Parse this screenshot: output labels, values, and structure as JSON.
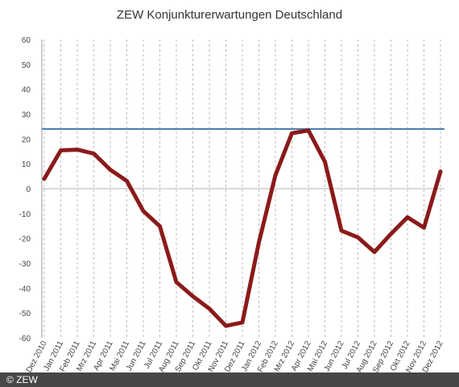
{
  "chart_data": {
    "type": "line",
    "title": "ZEW Konjunkturerwartungen Deutschland",
    "xlabel": "",
    "ylabel": "",
    "ylim": [
      -60,
      60
    ],
    "yticks": [
      60,
      50,
      40,
      30,
      20,
      10,
      0,
      -10,
      -20,
      -30,
      -40,
      -50,
      -60
    ],
    "grid": true,
    "categories": [
      "Dez 2010",
      "Jan 2011",
      "Feb 2011",
      "Mrz 2011",
      "Apr 2011",
      "Mai 2011",
      "Jun 2011",
      "Jul 2011",
      "Aug 2011",
      "Sep 2011",
      "Okt 2011",
      "Nov 2011",
      "Dez 2011",
      "Jan 2012",
      "Feb 2012",
      "Mrz 2012",
      "Apr 2012",
      "Mai 2012",
      "Jun 2012",
      "Jul 2012",
      "Aug 2012",
      "Sep 2012",
      "Okt 2012",
      "Nov 2012",
      "Dez 2012"
    ],
    "series": [
      {
        "color": "#8b1a1a",
        "values": [
          4.0,
          15.4,
          15.7,
          14.1,
          7.6,
          3.1,
          -9.0,
          -15.1,
          -37.6,
          -43.3,
          -48.3,
          -55.2,
          -53.8,
          -21.6,
          5.4,
          22.3,
          23.4,
          10.8,
          -16.9,
          -19.6,
          -25.5,
          -18.2,
          -11.5,
          -15.7,
          6.9
        ]
      }
    ],
    "reference_line": {
      "value": 24,
      "color": "#4a7fb0"
    }
  },
  "footer": {
    "copyright": "© ZEW"
  }
}
